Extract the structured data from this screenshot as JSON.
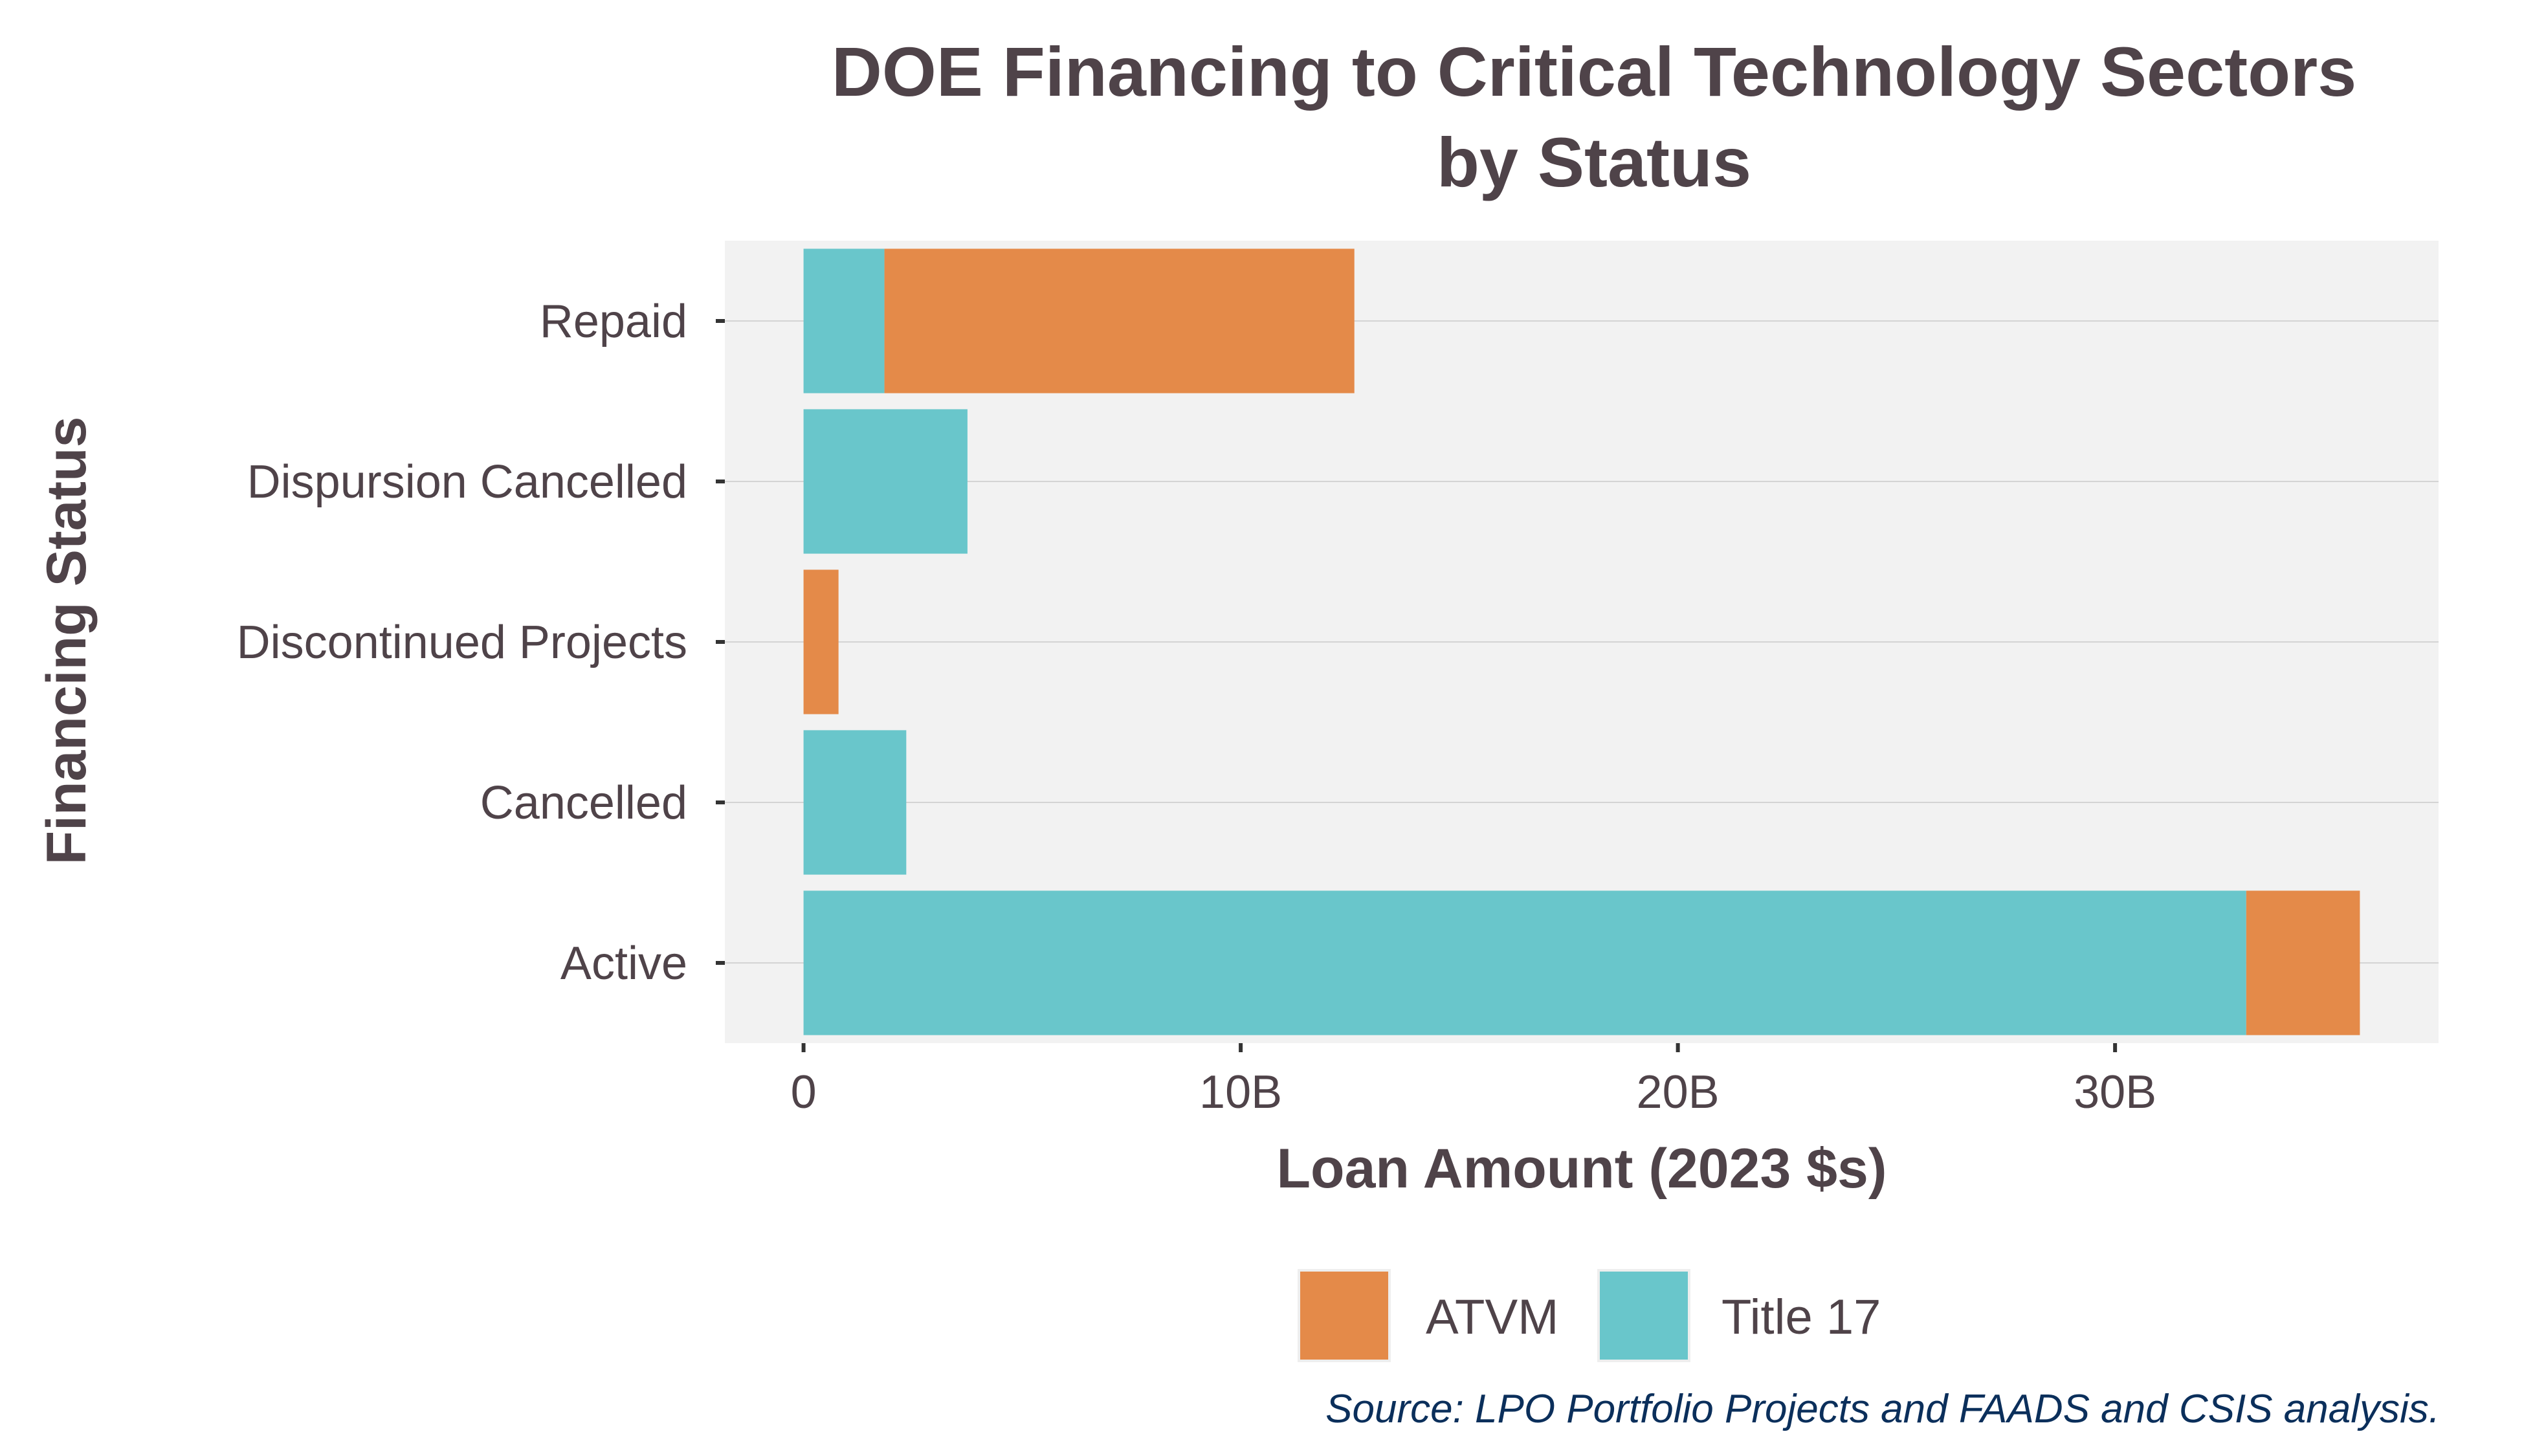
{
  "chart_data": {
    "type": "bar",
    "orientation": "horizontal",
    "stacked": true,
    "title_lines": [
      "DOE Financing to Critical Technology Sectors",
      "by Status"
    ],
    "xlabel": "Loan Amount (2023 $s)",
    "ylabel": "Financing Status",
    "categories": [
      "Repaid",
      "Dispursion Cancelled",
      "Discontinued Projects",
      "Cancelled",
      "Active"
    ],
    "series": [
      {
        "name": "Title 17",
        "color": "#69c6cb",
        "values": [
          1.85,
          3.75,
          0,
          2.35,
          33.0
        ]
      },
      {
        "name": "ATVM",
        "color": "#e48a49",
        "values": [
          10.75,
          0,
          0.8,
          0,
          2.6
        ]
      }
    ],
    "xlim": [
      -1.8,
      37.4
    ],
    "xticks": [
      0,
      10,
      20,
      30
    ],
    "xtick_labels": [
      "0",
      "10B",
      "20B",
      "30B"
    ],
    "grid": "horizontal",
    "legend": {
      "position": "bottom",
      "entries": [
        {
          "label": "ATVM",
          "color": "#e48a49"
        },
        {
          "label": "Title 17",
          "color": "#69c6cb"
        }
      ]
    },
    "caption": "Source: LPO Portfolio Projects and FAADS and CSIS analysis.",
    "panel_color": "#f2f2f2"
  }
}
